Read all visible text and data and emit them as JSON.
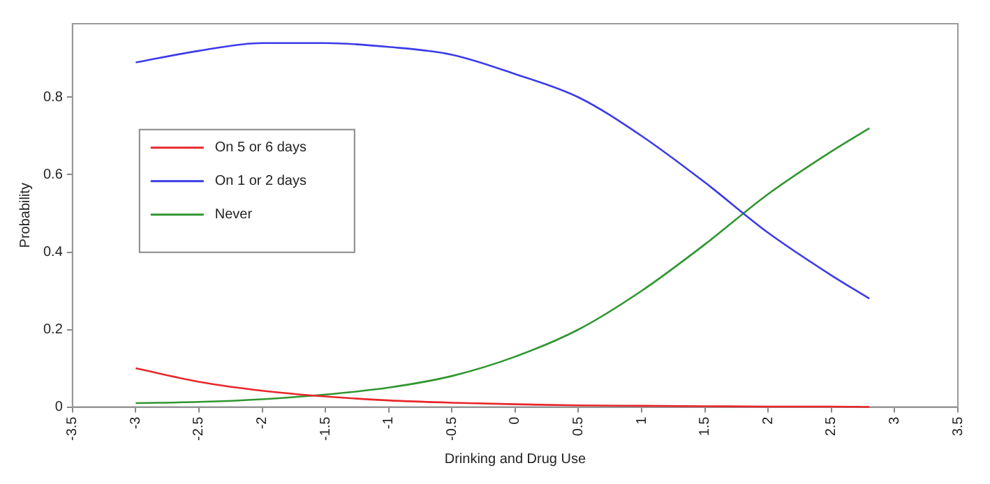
{
  "chart_data": {
    "type": "line",
    "xlabel": "Drinking and Drug Use",
    "ylabel": "Probability",
    "x": [
      -3,
      -2.5,
      -2,
      -1.5,
      -1,
      -0.5,
      0,
      0.5,
      1,
      1.5,
      2,
      2.5,
      2.8
    ],
    "series": [
      {
        "name": "On 5 or 6 days",
        "color": "#e8262a",
        "values": [
          0.1,
          0.065,
          0.042,
          0.027,
          0.017,
          0.011,
          0.007,
          0.004,
          0.003,
          0.002,
          0.001,
          0.001,
          0
        ]
      },
      {
        "name": "On 1 or 2 days",
        "color": "#3b3bea",
        "values": [
          0.89,
          0.92,
          0.94,
          0.94,
          0.93,
          0.91,
          0.86,
          0.8,
          0.7,
          0.58,
          0.45,
          0.34,
          0.28
        ]
      },
      {
        "name": "Never",
        "color": "#2f962f",
        "values": [
          0.01,
          0.013,
          0.02,
          0.032,
          0.05,
          0.08,
          0.13,
          0.2,
          0.3,
          0.42,
          0.55,
          0.66,
          0.72
        ]
      }
    ],
    "xlim": [
      -3.5,
      3.5
    ],
    "xticks": [
      -3.5,
      -3,
      -2.5,
      -2,
      -1.5,
      -1,
      -0.5,
      0,
      0.5,
      1,
      1.5,
      2,
      2.5,
      3,
      3.5
    ],
    "ylim": [
      0,
      0.99
    ],
    "yticks": [
      0,
      0.2,
      0.4,
      0.6,
      0.8
    ],
    "grid": false,
    "legend": "left",
    "marker": "none",
    "line_style": "solid"
  }
}
